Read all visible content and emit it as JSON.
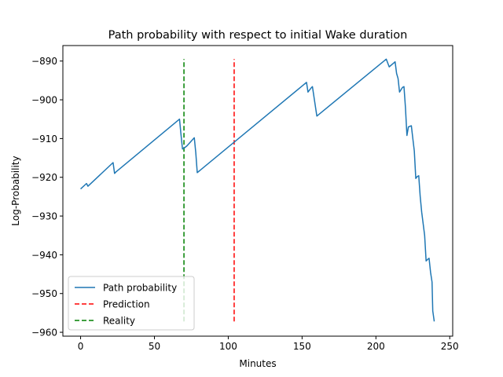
{
  "chart_data": {
    "type": "line",
    "title": "Path probability with respect to initial Wake duration",
    "xlabel": "Minutes",
    "ylabel": "Log-Probability",
    "xlim": [
      -12,
      252
    ],
    "ylim": [
      -961,
      -886
    ],
    "xticks": [
      0,
      50,
      100,
      150,
      200,
      250
    ],
    "yticks": [
      -890,
      -900,
      -910,
      -920,
      -930,
      -940,
      -950,
      -960
    ],
    "grid": false,
    "legend_position": "lower-left",
    "series": [
      {
        "name": "Path probability",
        "style": "solid",
        "color": "#1f77b4",
        "points": [
          [
            0,
            -923.0
          ],
          [
            4,
            -921.6
          ],
          [
            5,
            -922.3
          ],
          [
            22,
            -916.2
          ],
          [
            23,
            -919.0
          ],
          [
            24,
            -918.6
          ],
          [
            67,
            -905.0
          ],
          [
            68,
            -909.0
          ],
          [
            69,
            -912.7
          ],
          [
            70,
            -912.5
          ],
          [
            72,
            -911.9
          ],
          [
            77,
            -909.8
          ],
          [
            78,
            -913.6
          ],
          [
            79,
            -918.8
          ],
          [
            153,
            -895.5
          ],
          [
            154,
            -898.0
          ],
          [
            155,
            -897.5
          ],
          [
            156,
            -897.0
          ],
          [
            157,
            -896.6
          ],
          [
            160,
            -904.2
          ],
          [
            207,
            -889.5
          ],
          [
            209,
            -891.5
          ],
          [
            213,
            -890.2
          ],
          [
            214,
            -893.2
          ],
          [
            215,
            -894.5
          ],
          [
            216,
            -898.0
          ],
          [
            217,
            -897.4
          ],
          [
            218,
            -896.8
          ],
          [
            219,
            -896.6
          ],
          [
            220,
            -902.0
          ],
          [
            221,
            -909.2
          ],
          [
            222,
            -907.0
          ],
          [
            224,
            -906.7
          ],
          [
            225,
            -910.0
          ],
          [
            226,
            -913.2
          ],
          [
            227,
            -920.3
          ],
          [
            228,
            -919.8
          ],
          [
            229,
            -919.6
          ],
          [
            230,
            -925.0
          ],
          [
            231,
            -929.0
          ],
          [
            233,
            -935.0
          ],
          [
            234,
            -941.6
          ],
          [
            235,
            -941.2
          ],
          [
            236,
            -940.9
          ],
          [
            237,
            -944.5
          ],
          [
            238,
            -947.0
          ],
          [
            238.5,
            -954.5
          ],
          [
            239.5,
            -957.2
          ]
        ]
      },
      {
        "name": "Prediction",
        "style": "dashed",
        "color": "#ff0000",
        "points": [
          [
            104,
            -957.2
          ],
          [
            104,
            -889.5
          ]
        ]
      },
      {
        "name": "Reality",
        "style": "dashed",
        "color": "#008000",
        "points": [
          [
            70,
            -957.2
          ],
          [
            70,
            -889.5
          ]
        ]
      }
    ]
  }
}
